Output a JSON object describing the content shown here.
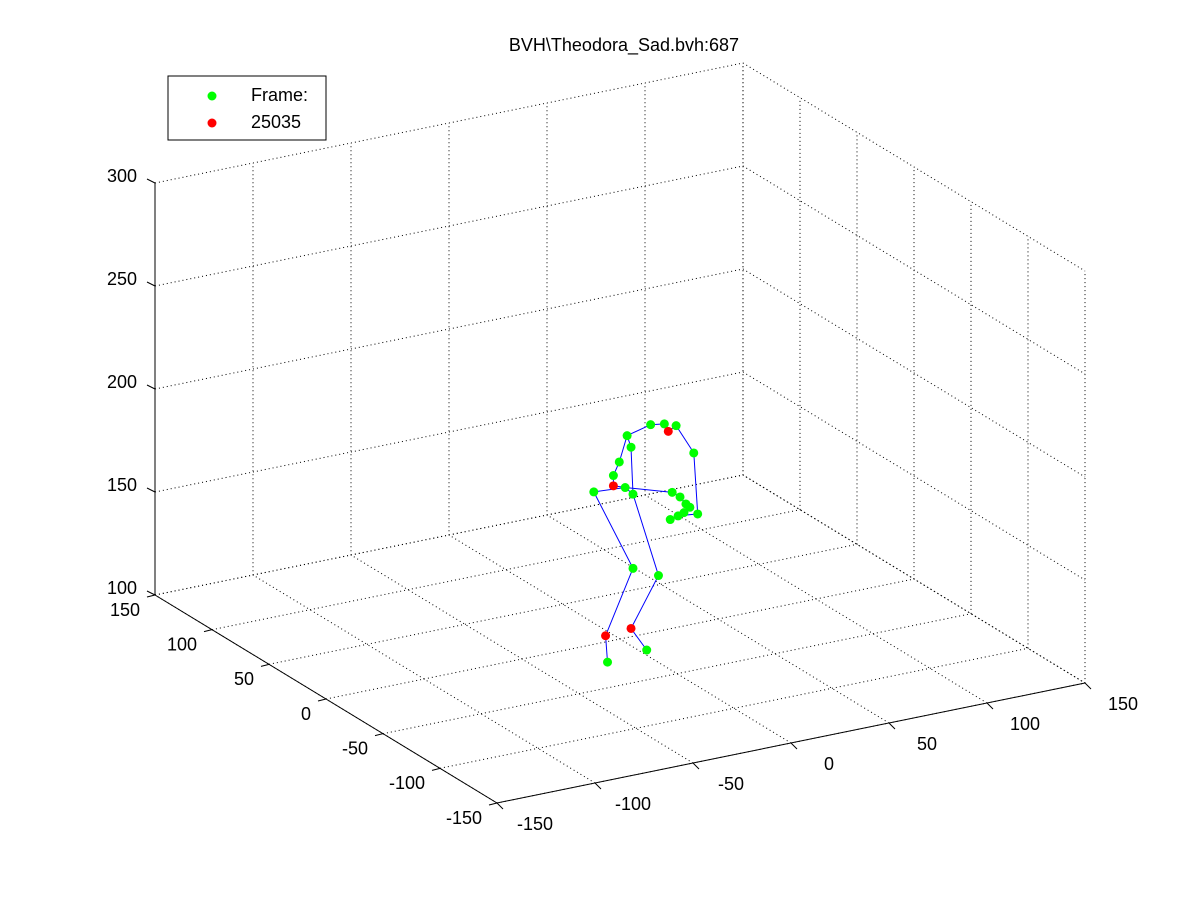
{
  "chart_data": {
    "type": "scatter3d",
    "title": "BVH\\Theodora_Sad.bvh:687",
    "xlim": [
      -150,
      150
    ],
    "ylim": [
      -150,
      150
    ],
    "zlim": [
      100,
      300
    ],
    "xticks": [
      -150,
      -100,
      -50,
      0,
      50,
      100,
      150
    ],
    "yticks": [
      -150,
      -100,
      -50,
      0,
      50,
      100,
      150
    ],
    "zticks": [
      100,
      150,
      200,
      250,
      300
    ],
    "grid": true,
    "legend": "upper left",
    "series": [
      {
        "style": "line",
        "color": "#0000ff",
        "x": [
          -18,
          -19,
          -5,
          -25,
          -9,
          -5,
          8,
          -6,
          2,
          null,
          -9,
          -15,
          -15,
          -12,
          -8,
          4,
          11,
          13,
          17,
          26,
          28,
          18,
          null,
          -8,
          -6,
          -5,
          null,
          -9,
          15,
          19,
          22,
          24,
          21,
          14
        ],
        "y": [
          -20,
          -20,
          -20,
          -20,
          -20,
          -20,
          -20,
          -20,
          -20,
          null,
          -20,
          -20,
          -20,
          -20,
          -20,
          -20,
          -20,
          -20,
          -20,
          -20,
          -20,
          -20,
          null,
          -20,
          -20,
          -20,
          null,
          -20,
          -20,
          -20,
          -20,
          -20,
          -20,
          -20
        ],
        "z": [
          99,
          112,
          142,
          183,
          182,
          178,
          136,
          113,
          101,
          null,
          182,
          184,
          189,
          195,
          207,
          210,
          209,
          205,
          207,
          192,
          162,
          163,
          null,
          207,
          201,
          178,
          null,
          182,
          175,
          172,
          168,
          166,
          164,
          162
        ]
      },
      {
        "style": "markers",
        "name": "Frame:",
        "color": "#00ff00",
        "x": [
          4,
          11,
          17,
          -8,
          -6,
          26,
          -12,
          -15,
          -25,
          -9,
          -5,
          15,
          19,
          22,
          24,
          21,
          18,
          28,
          14,
          -5,
          8,
          2,
          -18
        ],
        "y": [
          -20,
          -20,
          -20,
          -20,
          -20,
          -20,
          -20,
          -20,
          -20,
          -20,
          -20,
          -20,
          -20,
          -20,
          -20,
          -20,
          -20,
          -20,
          -20,
          -20,
          -20,
          -20,
          -20
        ],
        "z": [
          210,
          209,
          207,
          207,
          201,
          192,
          195,
          189,
          183,
          182,
          178,
          175,
          172,
          168,
          166,
          164,
          163,
          162,
          162,
          142,
          136,
          101,
          99
        ]
      },
      {
        "style": "markers",
        "name": "25035",
        "color": "#ff0000",
        "x": [
          13,
          -15,
          -19,
          -6
        ],
        "y": [
          -20,
          -20,
          -20,
          -20
        ],
        "z": [
          205,
          184,
          112,
          113
        ]
      }
    ]
  }
}
